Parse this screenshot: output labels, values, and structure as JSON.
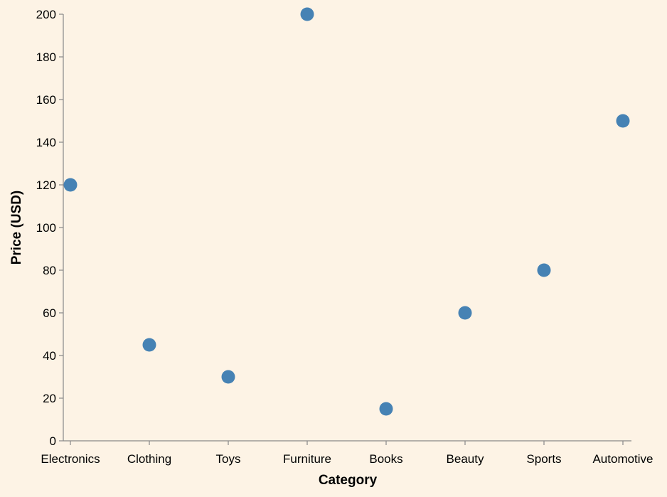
{
  "chart_data": {
    "type": "scatter",
    "xlabel": "Category",
    "ylabel": "Price (USD)",
    "categories": [
      "Electronics",
      "Clothing",
      "Toys",
      "Furniture",
      "Books",
      "Beauty",
      "Sports",
      "Automotive"
    ],
    "values": [
      120,
      45,
      30,
      200,
      15,
      60,
      80,
      150
    ],
    "ylim": [
      0,
      200
    ],
    "yticks": [
      0,
      20,
      40,
      60,
      80,
      100,
      120,
      140,
      160,
      180,
      200
    ],
    "grid": false,
    "point_color": "#4682b4",
    "background_color": "#fdf3e5"
  }
}
